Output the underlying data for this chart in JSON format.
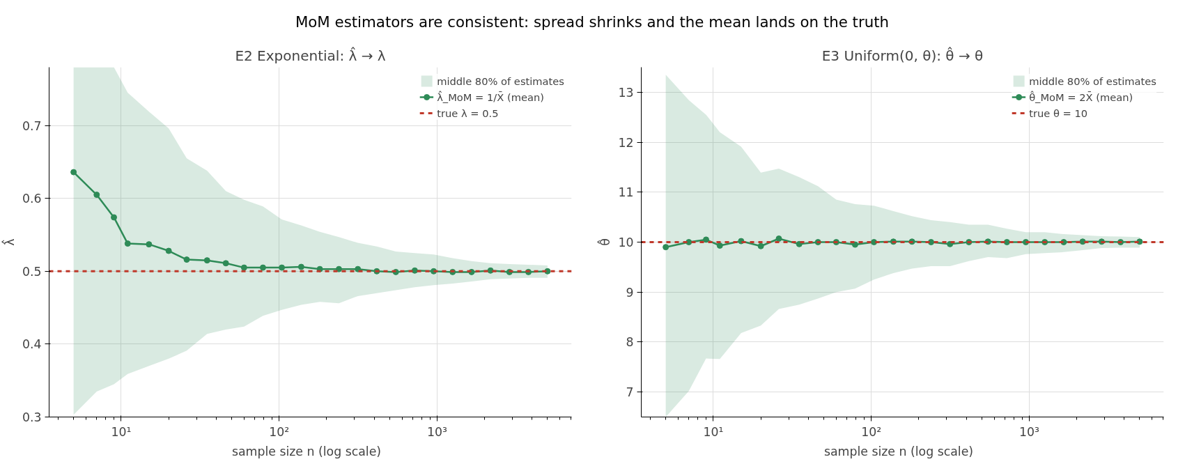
{
  "chart_data": [
    {
      "type": "line",
      "title": "MoM estimators are consistent: spread shrinks and the mean lands on the truth",
      "subtitle": "E2 Exponential: λ̂ → λ",
      "xlabel": "sample size  n  (log scale)",
      "ylabel": "λ̂",
      "log": "x",
      "grid": true,
      "legend": "top right",
      "x": [
        5,
        7,
        9,
        11,
        15,
        20,
        26,
        35,
        46,
        60,
        79,
        104,
        138,
        181,
        239,
        315,
        415,
        548,
        722,
        951,
        1254,
        1653,
        2178,
        2871,
        3785,
        5000
      ],
      "xlim": [
        3.5,
        7100
      ],
      "xticks": [
        {
          "value": 10,
          "label": "10¹"
        },
        {
          "value": 100,
          "label": "10²"
        },
        {
          "value": 1000,
          "label": "10³"
        }
      ],
      "ylim": [
        0.3,
        0.78
      ],
      "yticks": [
        0.3,
        0.4,
        0.5,
        0.6,
        0.7
      ],
      "series": [
        {
          "name": "middle 80% of estimates",
          "type": "area",
          "color": "#2e8b57",
          "values": [
            null,
            null,
            null,
            null,
            null,
            null,
            null,
            null,
            null,
            null,
            null,
            null,
            null,
            null,
            null,
            null,
            null,
            null,
            null,
            null,
            null,
            null,
            null,
            null,
            null,
            null
          ],
          "upper": [
            0.78,
            0.78,
            0.78,
            0.745,
            0.719,
            0.696,
            0.655,
            0.638,
            0.61,
            0.598,
            0.589,
            0.571,
            0.563,
            0.554,
            0.547,
            0.539,
            0.534,
            0.527,
            0.525,
            0.523,
            0.518,
            0.514,
            0.511,
            0.51,
            0.509,
            0.508
          ],
          "lower": [
            0.303,
            0.335,
            0.345,
            0.359,
            0.37,
            0.38,
            0.391,
            0.414,
            0.42,
            0.424,
            0.439,
            0.447,
            0.454,
            0.458,
            0.456,
            0.466,
            0.47,
            0.474,
            0.478,
            0.481,
            0.483,
            0.486,
            0.489,
            0.49,
            0.491,
            0.491
          ]
        },
        {
          "name": "λ̂_MoM = 1/X̄ (mean)",
          "marker": "circle",
          "color": "#2e8b57",
          "values": [
            0.636,
            0.605,
            0.574,
            0.538,
            0.537,
            0.528,
            0.516,
            0.515,
            0.511,
            0.505,
            0.505,
            0.505,
            0.506,
            0.503,
            0.503,
            0.503,
            0.5,
            0.499,
            0.501,
            0.5,
            0.499,
            0.499,
            0.501,
            0.499,
            0.499,
            0.5
          ]
        }
      ],
      "ref_lines": [
        {
          "axis": "y",
          "value": 0.5,
          "label": "true λ = 0.5",
          "color": "#c0392b",
          "line_style": "dashed"
        }
      ]
    },
    {
      "type": "line",
      "subtitle": "E3 Uniform(0, θ): θ̂ → θ",
      "xlabel": "sample size  n  (log scale)",
      "ylabel": "θ̂",
      "log": "x",
      "grid": true,
      "legend": "top right",
      "x": [
        5,
        7,
        9,
        11,
        15,
        20,
        26,
        35,
        46,
        60,
        79,
        104,
        138,
        181,
        239,
        315,
        415,
        548,
        722,
        951,
        1254,
        1653,
        2178,
        2871,
        3785,
        5000
      ],
      "xlim": [
        3.5,
        7100
      ],
      "xticks": [
        {
          "value": 10,
          "label": "10¹"
        },
        {
          "value": 100,
          "label": "10²"
        },
        {
          "value": 1000,
          "label": "10³"
        }
      ],
      "ylim": [
        6.5,
        13.5
      ],
      "yticks": [
        7,
        8,
        9,
        10,
        11,
        12,
        13
      ],
      "series": [
        {
          "name": "middle 80% of estimates",
          "type": "area",
          "color": "#2e8b57",
          "values": [
            null,
            null,
            null,
            null,
            null,
            null,
            null,
            null,
            null,
            null,
            null,
            null,
            null,
            null,
            null,
            null,
            null,
            null,
            null,
            null,
            null,
            null,
            null,
            null,
            null,
            null
          ],
          "upper": [
            13.35,
            12.84,
            12.55,
            12.2,
            11.91,
            11.39,
            11.47,
            11.3,
            11.12,
            10.85,
            10.76,
            10.73,
            10.62,
            10.52,
            10.44,
            10.4,
            10.35,
            10.35,
            10.27,
            10.2,
            10.2,
            10.16,
            10.14,
            10.12,
            10.11,
            10.1
          ],
          "lower": [
            6.5,
            7.02,
            7.67,
            7.66,
            8.18,
            8.33,
            8.66,
            8.75,
            8.87,
            9.0,
            9.07,
            9.25,
            9.38,
            9.47,
            9.52,
            9.52,
            9.62,
            9.7,
            9.68,
            9.76,
            9.78,
            9.8,
            9.84,
            9.88,
            9.89,
            9.89
          ]
        },
        {
          "name": "θ̂_MoM = 2X̄ (mean)",
          "marker": "circle",
          "color": "#2e8b57",
          "values": [
            9.9,
            10.0,
            10.05,
            9.93,
            10.02,
            9.92,
            10.07,
            9.96,
            10.0,
            10.0,
            9.95,
            10.0,
            10.01,
            10.01,
            10.0,
            9.96,
            10.0,
            10.01,
            10.0,
            10.0,
            10.0,
            10.0,
            10.01,
            10.01,
            10.0,
            10.01
          ]
        }
      ],
      "ref_lines": [
        {
          "axis": "y",
          "value": 10,
          "label": "true θ = 10",
          "color": "#c0392b",
          "line_style": "dashed"
        }
      ]
    }
  ]
}
